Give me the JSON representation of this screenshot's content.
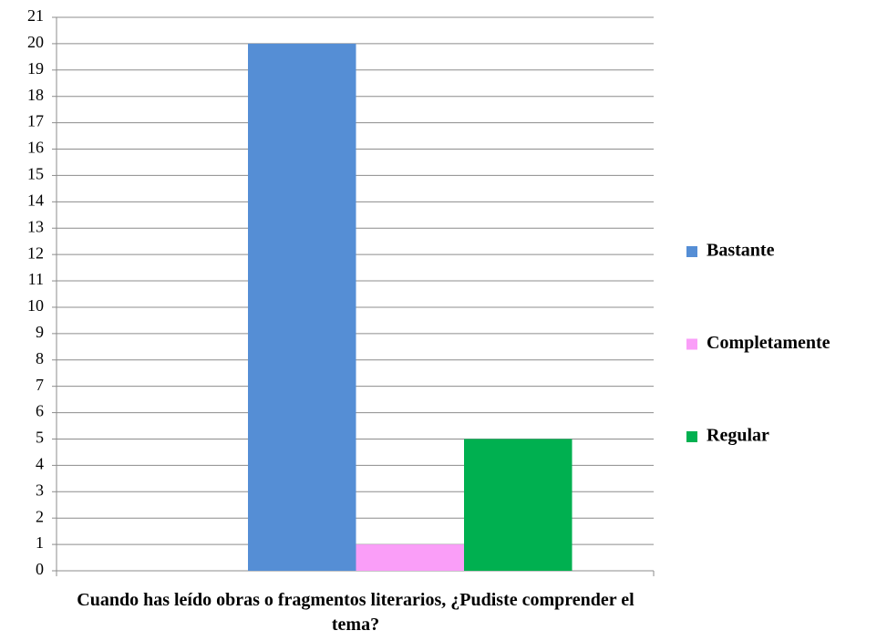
{
  "chart_data": {
    "type": "bar",
    "categories": [
      "Cuando has leído obras o fragmentos literarios, ¿Pudiste comprender el tema?"
    ],
    "series": [
      {
        "name": "Bastante",
        "color": "#558ed5",
        "values": [
          20
        ]
      },
      {
        "name": "Completamente",
        "color": "#fa9ef8",
        "values": [
          1
        ]
      },
      {
        "name": "Regular",
        "color": "#00b050",
        "values": [
          5
        ]
      }
    ],
    "ylim": [
      0,
      21
    ],
    "yticks": [
      0,
      1,
      2,
      3,
      4,
      5,
      6,
      7,
      8,
      9,
      10,
      11,
      12,
      13,
      14,
      15,
      16,
      17,
      18,
      19,
      20,
      21
    ],
    "grid": true,
    "legend": "right"
  }
}
